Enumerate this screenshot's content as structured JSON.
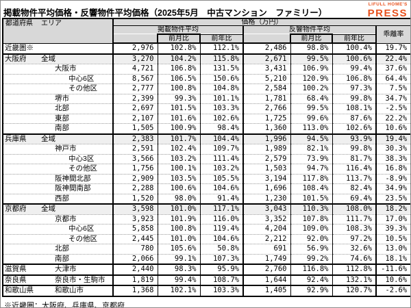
{
  "title": "掲載物件平均価格・反響物件平均価格（2025年5月　中古マンション　ファミリー）",
  "logo": {
    "top": "LIFULL HOME'S",
    "main": "PRESS",
    "color": "#e8511d"
  },
  "header": {
    "pref": "都道府県",
    "area": "エリア",
    "price_group": "価格（万円）",
    "listed_group": "掲載物件平均",
    "response_group": "反響物件平均",
    "mom": "前月比",
    "yoy": "前年比",
    "divergence": "乖離率"
  },
  "footnote": "※近畿圏：大阪府、兵庫県、京都府",
  "table": {
    "column_meaning": [
      "掲載物件平均価格",
      "掲載前月比",
      "掲載前年比",
      "反響物件平均価格",
      "反響前月比",
      "反響前年比",
      "乖離率"
    ],
    "rows": [
      {
        "pref": "近畿圏※",
        "area": "",
        "indent": 0,
        "section": false,
        "shaded": false,
        "values": [
          "2,976",
          "102.8%",
          "112.1%",
          "2,486",
          "98.8%",
          "100.4%",
          "19.7%"
        ]
      },
      {
        "pref": "大阪府",
        "area": "全域",
        "indent": 1,
        "section": true,
        "shaded": true,
        "values": [
          "3,270",
          "104.2%",
          "115.8%",
          "2,671",
          "99.5%",
          "100.6%",
          "22.4%"
        ]
      },
      {
        "pref": "",
        "area": "大阪市",
        "indent": 2,
        "section": false,
        "shaded": false,
        "values": [
          "4,721",
          "106.8%",
          "131.5%",
          "3,431",
          "106.9%",
          "99.4%",
          "37.6%"
        ]
      },
      {
        "pref": "",
        "area": "中心6区",
        "indent": 3,
        "section": false,
        "shaded": false,
        "values": [
          "8,567",
          "106.5%",
          "150.6%",
          "5,210",
          "120.9%",
          "106.8%",
          "64.4%"
        ]
      },
      {
        "pref": "",
        "area": "その他区",
        "indent": 3,
        "section": false,
        "shaded": false,
        "values": [
          "2,777",
          "100.8%",
          "104.8%",
          "2,584",
          "100.2%",
          "97.3%",
          "7.5%"
        ]
      },
      {
        "pref": "",
        "area": "堺市",
        "indent": 2,
        "section": false,
        "shaded": false,
        "values": [
          "2,399",
          "99.3%",
          "101.1%",
          "1,781",
          "68.4%",
          "99.8%",
          "34.7%"
        ]
      },
      {
        "pref": "",
        "area": "北部",
        "indent": 2,
        "section": false,
        "shaded": false,
        "values": [
          "2,697",
          "101.5%",
          "103.3%",
          "2,766",
          "99.5%",
          "108.1%",
          "-2.5%"
        ]
      },
      {
        "pref": "",
        "area": "東部",
        "indent": 2,
        "section": false,
        "shaded": false,
        "values": [
          "2,107",
          "101.6%",
          "102.6%",
          "1,725",
          "99.6%",
          "87.6%",
          "22.2%"
        ]
      },
      {
        "pref": "",
        "area": "南部",
        "indent": 2,
        "section": false,
        "shaded": false,
        "values": [
          "1,505",
          "100.9%",
          "98.4%",
          "1,360",
          "113.0%",
          "102.6%",
          "10.6%"
        ]
      },
      {
        "pref": "兵庫県",
        "area": "全域",
        "indent": 1,
        "section": true,
        "shaded": true,
        "values": [
          "2,383",
          "101.7%",
          "104.4%",
          "1,996",
          "94.5%",
          "93.9%",
          "19.4%"
        ]
      },
      {
        "pref": "",
        "area": "神戸市",
        "indent": 2,
        "section": false,
        "shaded": false,
        "values": [
          "2,591",
          "102.4%",
          "109.7%",
          "1,989",
          "82.1%",
          "99.8%",
          "30.3%"
        ]
      },
      {
        "pref": "",
        "area": "中心3区",
        "indent": 3,
        "section": false,
        "shaded": false,
        "values": [
          "3,566",
          "103.2%",
          "111.4%",
          "2,579",
          "73.9%",
          "81.7%",
          "38.3%"
        ]
      },
      {
        "pref": "",
        "area": "その他区",
        "indent": 3,
        "section": false,
        "shaded": false,
        "values": [
          "1,756",
          "100.1%",
          "103.2%",
          "1,503",
          "94.7%",
          "116.4%",
          "16.8%"
        ]
      },
      {
        "pref": "",
        "area": "阪神間北部",
        "indent": 2,
        "section": false,
        "shaded": false,
        "values": [
          "2,909",
          "103.5%",
          "105.5%",
          "3,194",
          "117.8%",
          "113.7%",
          "-8.9%"
        ]
      },
      {
        "pref": "",
        "area": "阪神間南部",
        "indent": 2,
        "section": false,
        "shaded": false,
        "values": [
          "2,288",
          "100.6%",
          "104.6%",
          "1,696",
          "108.4%",
          "82.4%",
          "34.9%"
        ]
      },
      {
        "pref": "",
        "area": "西部",
        "indent": 2,
        "section": false,
        "shaded": false,
        "values": [
          "1,520",
          "98.0%",
          "91.4%",
          "1,230",
          "101.5%",
          "69.4%",
          "23.5%"
        ]
      },
      {
        "pref": "京都府",
        "area": "全域",
        "indent": 1,
        "section": true,
        "shaded": true,
        "values": [
          "3,598",
          "101.0%",
          "117.1%",
          "3,043",
          "110.3%",
          "108.0%",
          "18.2%"
        ]
      },
      {
        "pref": "",
        "area": "京都市",
        "indent": 2,
        "section": false,
        "shaded": false,
        "values": [
          "3,923",
          "101.9%",
          "116.0%",
          "3,352",
          "107.8%",
          "111.7%",
          "17.0%"
        ]
      },
      {
        "pref": "",
        "area": "中心6区",
        "indent": 3,
        "section": false,
        "shaded": false,
        "values": [
          "5,858",
          "100.8%",
          "119.4%",
          "4,204",
          "109.0%",
          "108.3%",
          "39.3%"
        ]
      },
      {
        "pref": "",
        "area": "その他区",
        "indent": 3,
        "section": false,
        "shaded": false,
        "values": [
          "2,445",
          "101.0%",
          "104.6%",
          "2,212",
          "92.0%",
          "97.2%",
          "10.5%"
        ]
      },
      {
        "pref": "",
        "area": "北部",
        "indent": 2,
        "section": false,
        "shaded": false,
        "values": [
          "780",
          "105.6%",
          "50.8%",
          "691",
          "56.9%",
          "32.6%",
          "13.0%"
        ]
      },
      {
        "pref": "",
        "area": "南部",
        "indent": 2,
        "section": false,
        "shaded": false,
        "values": [
          "2,066",
          "99.1%",
          "107.3%",
          "1,749",
          "99.2%",
          "74.6%",
          "18.1%"
        ]
      },
      {
        "pref": "滋賀県",
        "area": "大津市",
        "indent": 2,
        "section": true,
        "shaded": false,
        "values": [
          "2,440",
          "98.3%",
          "95.9%",
          "2,760",
          "116.8%",
          "112.8%",
          "-11.6%"
        ]
      },
      {
        "pref": "奈良県",
        "area": "奈良市・生駒市",
        "indent": 2,
        "section": true,
        "shaded": false,
        "values": [
          "1,819",
          "99.4%",
          "108.7%",
          "1,644",
          "92.4%",
          "132.1%",
          "10.6%"
        ]
      },
      {
        "pref": "和歌山県",
        "area": "和歌山市",
        "indent": 2,
        "section": true,
        "shaded": false,
        "values": [
          "1,368",
          "102.1%",
          "103.3%",
          "1,405",
          "92.9%",
          "120.7%",
          "-2.6%"
        ]
      }
    ]
  }
}
